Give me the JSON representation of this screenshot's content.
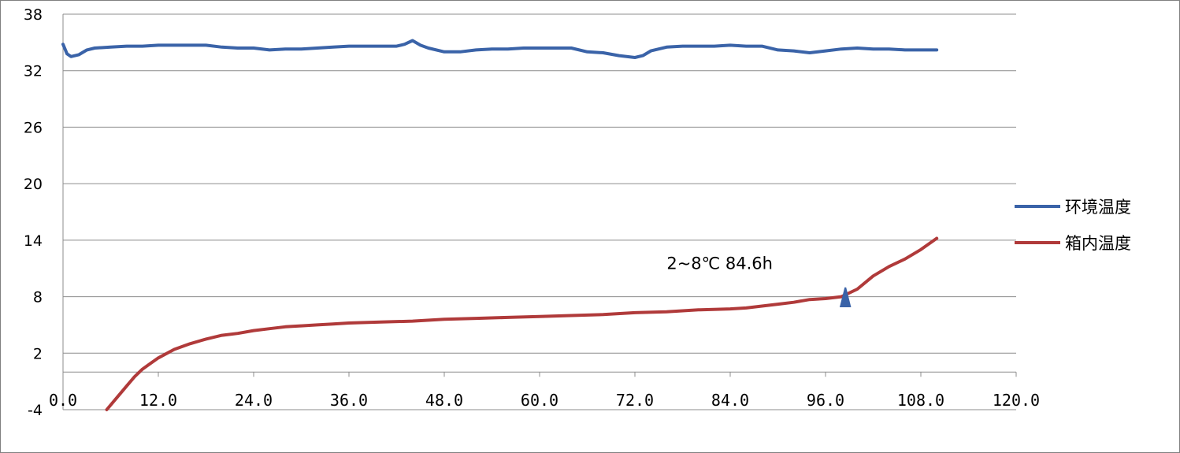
{
  "chart_data": {
    "type": "line",
    "title": "",
    "xlabel": "",
    "ylabel": "",
    "xlim": [
      0,
      120
    ],
    "ylim": [
      -4,
      38
    ],
    "y_ticks": [
      -4,
      2,
      8,
      14,
      20,
      26,
      32,
      38
    ],
    "y_tick_labels": [
      "-4",
      "2",
      "8",
      "14",
      "20",
      "26",
      "32",
      "38"
    ],
    "x_ticks": [
      0,
      12,
      24,
      36,
      48,
      60,
      72,
      84,
      96,
      108,
      120
    ],
    "x_tick_labels": [
      "0.0",
      "12.0",
      "24.0",
      "36.0",
      "48.0",
      "60.0",
      "72.0",
      "84.0",
      "96.0",
      "108.0",
      "120.0"
    ],
    "x_axis_crosses_at_y": 0,
    "grid": "horizontal",
    "legend_position": "right",
    "series": [
      {
        "name": "环境温度",
        "color": "#3a63a8",
        "x": [
          0,
          0.5,
          1,
          2,
          3,
          4,
          6,
          8,
          10,
          12,
          14,
          16,
          18,
          20,
          22,
          24,
          26,
          28,
          30,
          32,
          34,
          36,
          38,
          40,
          42,
          43,
          44,
          45,
          46,
          48,
          50,
          52,
          54,
          56,
          58,
          60,
          62,
          64,
          66,
          68,
          70,
          72,
          73,
          74,
          76,
          78,
          80,
          82,
          84,
          86,
          88,
          90,
          92,
          94,
          96,
          98,
          100,
          102,
          104,
          106,
          108,
          110
        ],
        "y": [
          34.8,
          33.8,
          33.5,
          33.7,
          34.2,
          34.4,
          34.5,
          34.6,
          34.6,
          34.7,
          34.7,
          34.7,
          34.7,
          34.5,
          34.4,
          34.4,
          34.2,
          34.3,
          34.3,
          34.4,
          34.5,
          34.6,
          34.6,
          34.6,
          34.6,
          34.8,
          35.2,
          34.7,
          34.4,
          34.0,
          34.0,
          34.2,
          34.3,
          34.3,
          34.4,
          34.4,
          34.4,
          34.4,
          34.0,
          33.9,
          33.6,
          33.4,
          33.6,
          34.1,
          34.5,
          34.6,
          34.6,
          34.6,
          34.7,
          34.6,
          34.6,
          34.2,
          34.1,
          33.9,
          34.1,
          34.3,
          34.4,
          34.3,
          34.3,
          34.2,
          34.2,
          34.2
        ]
      },
      {
        "name": "箱内温度",
        "color": "#b03a3a",
        "x": [
          5.5,
          7,
          8,
          9,
          10,
          11,
          12,
          14,
          16,
          18,
          20,
          22,
          24,
          26,
          28,
          30,
          32,
          34,
          36,
          40,
          44,
          48,
          52,
          56,
          60,
          64,
          68,
          72,
          76,
          80,
          84,
          86,
          88,
          90,
          92,
          94,
          96,
          98,
          100,
          102,
          104,
          106,
          108,
          110
        ],
        "y": [
          -4.0,
          -2.5,
          -1.5,
          -0.5,
          0.3,
          0.9,
          1.5,
          2.4,
          3.0,
          3.5,
          3.9,
          4.1,
          4.4,
          4.6,
          4.8,
          4.9,
          5.0,
          5.1,
          5.2,
          5.3,
          5.4,
          5.6,
          5.7,
          5.8,
          5.9,
          6.0,
          6.1,
          6.3,
          6.4,
          6.6,
          6.7,
          6.8,
          7.0,
          7.2,
          7.4,
          7.7,
          7.8,
          8.0,
          8.8,
          10.2,
          11.2,
          12.0,
          13.0,
          14.2
        ]
      }
    ],
    "annotations": [
      {
        "text": "2~8℃  84.6h",
        "x": 76,
        "y": 11.5
      }
    ],
    "marker": {
      "x": 98.5,
      "y": 7.8,
      "color": "#3a63a8",
      "shape": "triangle-up"
    }
  }
}
